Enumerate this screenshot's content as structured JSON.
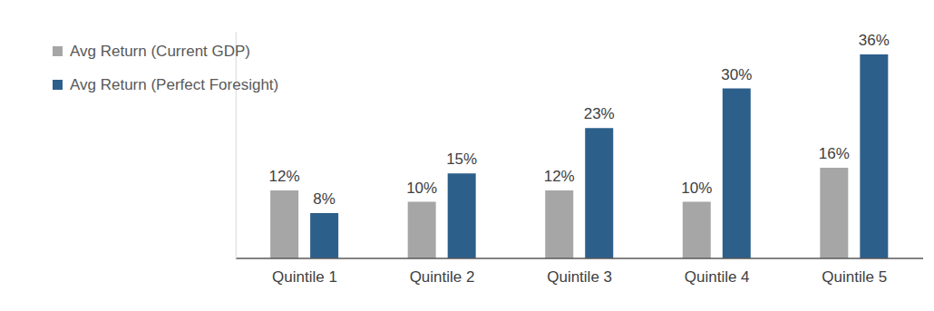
{
  "chart_data": {
    "type": "bar",
    "categories": [
      "Quintile 1",
      "Quintile 2",
      "Quintile 3",
      "Quintile 4",
      "Quintile 5"
    ],
    "series": [
      {
        "name": "Avg Return (Current GDP)",
        "color": "#a6a6a6",
        "values": [
          12,
          10,
          12,
          10,
          16
        ],
        "value_labels": [
          "12%",
          "10%",
          "12%",
          "10%",
          "16%"
        ]
      },
      {
        "name": "Avg Return (Perfect Foresight)",
        "color": "#2d5f8b",
        "values": [
          8,
          15,
          23,
          30,
          36
        ],
        "value_labels": [
          "8%",
          "15%",
          "23%",
          "30%",
          "36%"
        ]
      }
    ],
    "ylim": [
      0,
      40
    ],
    "grid": false,
    "legend": "top-left",
    "data_labels": true,
    "tick_labels": "x"
  }
}
